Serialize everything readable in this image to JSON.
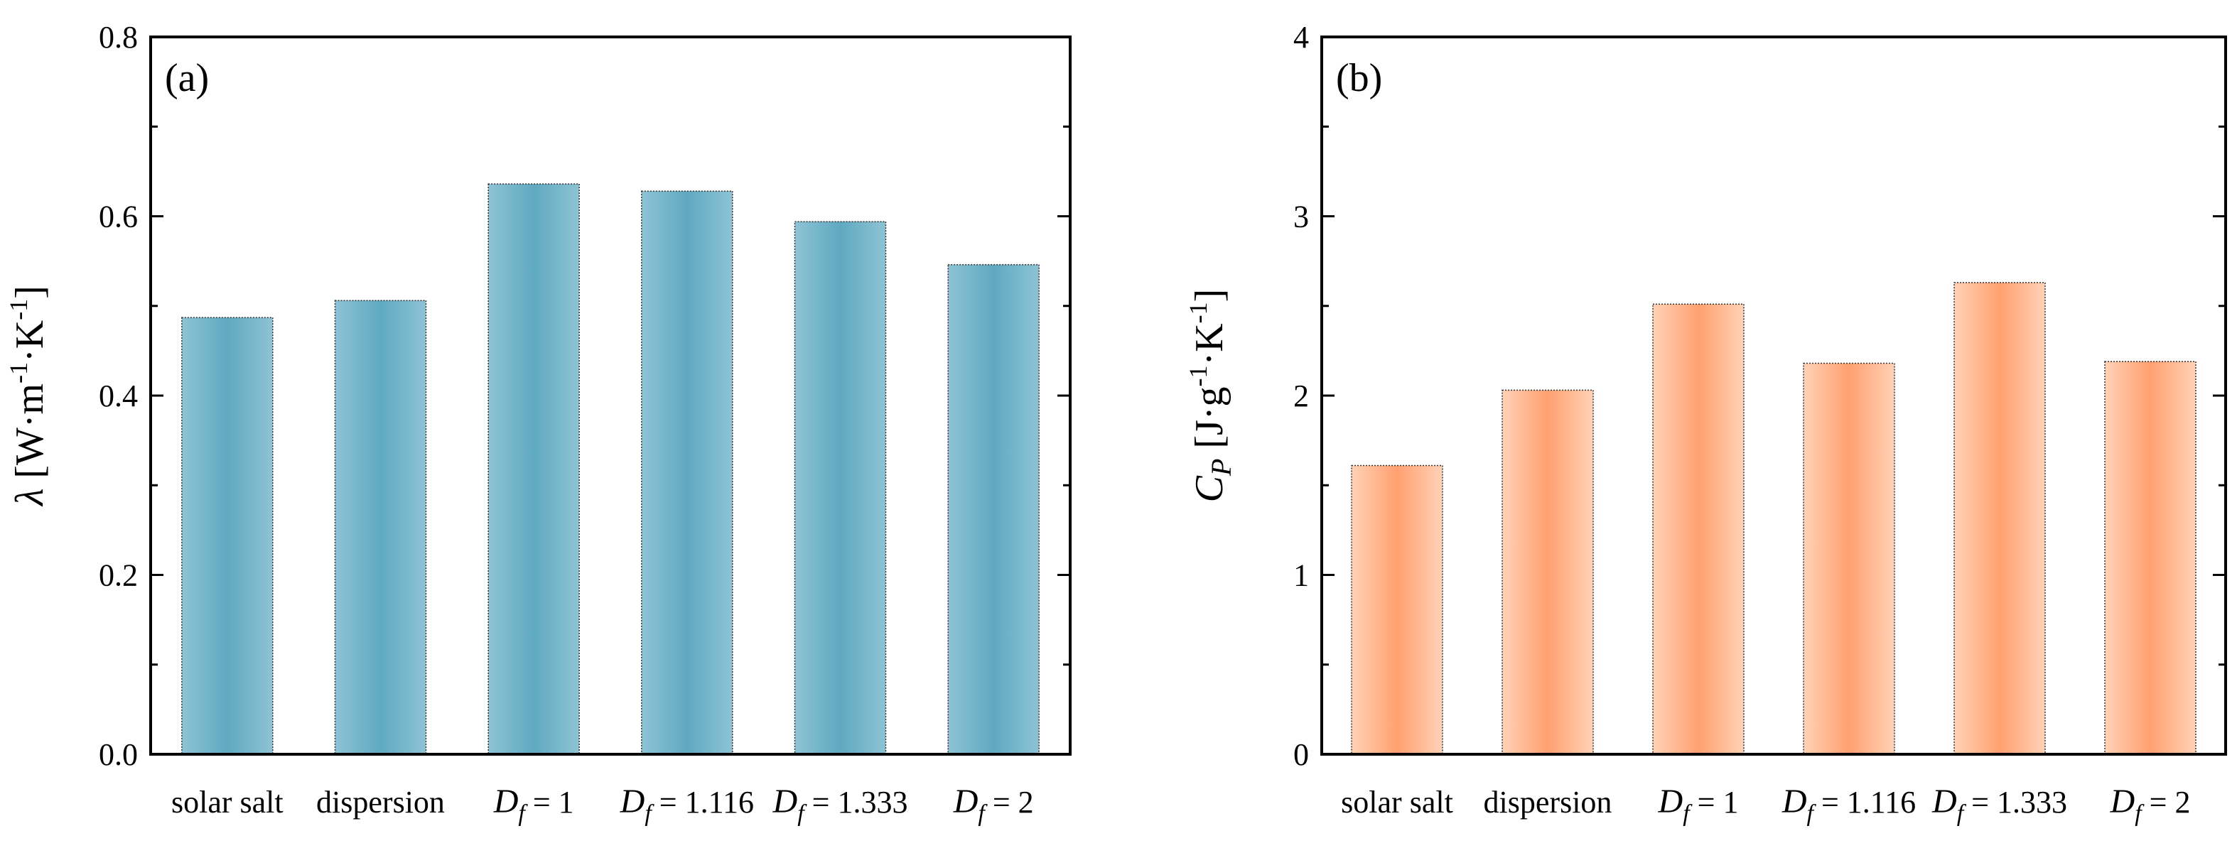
{
  "chart_data": [
    {
      "type": "bar",
      "panel_label": "(a)",
      "ylabel_main": "λ",
      "ylabel_unit": [
        "[W·m",
        "-1",
        "·K",
        "-1",
        "]"
      ],
      "categories": [
        {
          "label": "solar salt"
        },
        {
          "label": "dispersion"
        },
        {
          "label": "D",
          "sub": "f",
          "rest": " = 1"
        },
        {
          "label": "D",
          "sub": "f",
          "rest": " = 1.116"
        },
        {
          "label": "D",
          "sub": "f",
          "rest": " = 1.333"
        },
        {
          "label": "D",
          "sub": "f",
          "rest": " = 2"
        }
      ],
      "values": [
        0.487,
        0.506,
        0.636,
        0.628,
        0.594,
        0.546
      ],
      "ylim": [
        0,
        0.8
      ],
      "yticks": [
        0.0,
        0.2,
        0.4,
        0.6,
        0.8
      ],
      "ytick_labels": [
        "0.0",
        "0.2",
        "0.4",
        "0.6",
        "0.8"
      ],
      "bar_colors": [
        "#5fa9c1",
        "#8ec3d4"
      ],
      "grid": false
    },
    {
      "type": "bar",
      "panel_label": "(b)",
      "ylabel_main": "C",
      "ylabel_sub": "P",
      "ylabel_unit": [
        "[J·g",
        "-1",
        "·K",
        "-1",
        "]"
      ],
      "categories": [
        {
          "label": "solar salt"
        },
        {
          "label": "dispersion"
        },
        {
          "label": "D",
          "sub": "f",
          "rest": " = 1"
        },
        {
          "label": "D",
          "sub": "f",
          "rest": " = 1.116"
        },
        {
          "label": "D",
          "sub": "f",
          "rest": " = 1.333"
        },
        {
          "label": "D",
          "sub": "f",
          "rest": " = 2"
        }
      ],
      "values": [
        1.61,
        2.03,
        2.51,
        2.18,
        2.63,
        2.19
      ],
      "ylim": [
        0,
        4
      ],
      "yticks": [
        0,
        1,
        2,
        3,
        4
      ],
      "ytick_labels": [
        "0",
        "1",
        "2",
        "3",
        "4"
      ],
      "bar_colors": [
        "#ffa070",
        "#ffd2b6"
      ],
      "grid": false
    }
  ]
}
